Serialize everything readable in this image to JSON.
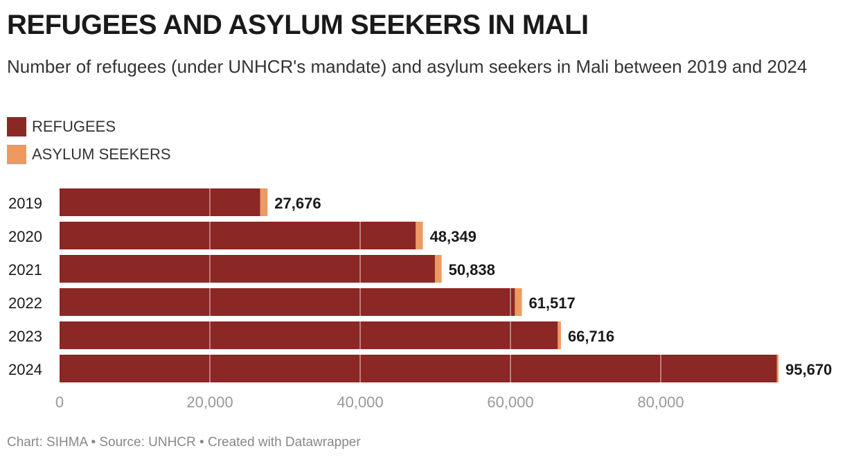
{
  "title": "REFUGEES AND ASYLUM SEEKERS IN MALI",
  "subtitle": "Number of refugees (under UNHCR's mandate) and asylum seekers in Mali between 2019 and 2024",
  "legend": [
    {
      "label": "REFUGEES",
      "color": "#8b2724"
    },
    {
      "label": "ASYLUM SEEKERS",
      "color": "#ec9a62"
    }
  ],
  "footer": {
    "chart": "Chart: SIHMA",
    "source": "Source: UNHCR",
    "created": "Created with Datawrapper"
  },
  "chart_data": {
    "type": "bar",
    "orientation": "horizontal",
    "stacked": true,
    "categories": [
      "2019",
      "2020",
      "2021",
      "2022",
      "2023",
      "2024"
    ],
    "series": [
      {
        "name": "REFUGEES",
        "color": "#8b2724",
        "values": [
          26700,
          47400,
          49950,
          60590,
          66300,
          95440
        ]
      },
      {
        "name": "ASYLUM SEEKERS",
        "color": "#ec9a62",
        "values": [
          976,
          949,
          888,
          927,
          416,
          230
        ]
      }
    ],
    "totals": [
      27676,
      48349,
      50838,
      61517,
      66716,
      95670
    ],
    "total_labels": [
      "27,676",
      "48,349",
      "50,838",
      "61,517",
      "66,716",
      "95,670"
    ],
    "xlim": [
      0,
      95670
    ],
    "xticks": [
      0,
      20000,
      40000,
      60000,
      80000
    ],
    "xtick_labels": [
      "0",
      "20,000",
      "40,000",
      "60,000",
      "80,000"
    ],
    "grid": true
  }
}
